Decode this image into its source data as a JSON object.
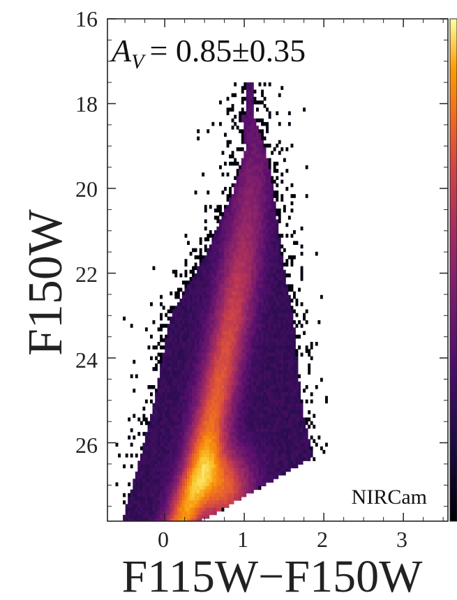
{
  "chart_data": {
    "type": "heatmap",
    "title": "",
    "xlabel": "F115W−F150W",
    "ylabel": "F150W",
    "xlim": [
      -0.72,
      3.56
    ],
    "ylim": [
      27.85,
      16.0
    ],
    "y_inverted": true,
    "xticks": [
      0,
      1,
      2,
      3
    ],
    "yticks": [
      16,
      18,
      20,
      22,
      24,
      26
    ],
    "xtick_labels": [
      "0",
      "1",
      "2",
      "3"
    ],
    "ytick_labels": [
      "16",
      "18",
      "20",
      "22",
      "24",
      "26"
    ],
    "grid": false,
    "colormap": "inferno",
    "colorbar": {
      "location": "right",
      "labels": []
    },
    "annotations": {
      "extinction_prefix": "A",
      "extinction_subscript": "V",
      "extinction_value": "= 0.85±0.35",
      "instrument": "NIRCam"
    },
    "density_ridges": [
      {
        "color": 0.2,
        "mag": 27.8
      },
      {
        "color": 0.45,
        "mag": 26.5
      },
      {
        "color": 0.62,
        "mag": 25.0
      },
      {
        "color": 0.78,
        "mag": 23.5
      },
      {
        "color": 0.92,
        "mag": 22.0
      },
      {
        "color": 1.05,
        "mag": 20.3
      },
      {
        "color": 1.12,
        "mag": 19.0
      }
    ],
    "density_peak": {
      "color": 0.72,
      "mag": 27.0
    }
  }
}
